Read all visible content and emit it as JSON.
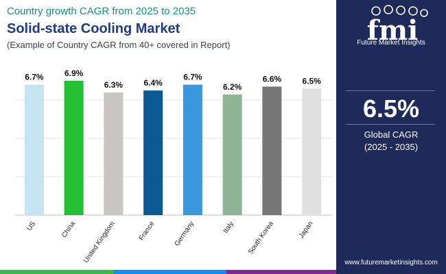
{
  "header": {
    "supertitle": "Country growth CAGR from 2025 to 2035",
    "title": "Solid-state Cooling Market",
    "subtitle": "(Example of Country CAGR from 40+ covered in Report)"
  },
  "sidebar": {
    "logo_text": "fmi",
    "brand": "Future Market Insights",
    "global_value": "6.5%",
    "global_label": "Global CAGR",
    "global_range": "(2025 - 2035)",
    "website": "www.futuremarketinsights.com"
  },
  "colors": {
    "sidebar_bg": "#1e2a5a",
    "title": "#1e3a8a",
    "supertitle": "#0d9488",
    "footer": [
      "#4caf50",
      "#1e88e5",
      "#7b2d8e"
    ]
  },
  "chart_data": {
    "type": "bar",
    "title": "Solid-state Cooling Market",
    "categories": [
      "US",
      "China",
      "United Kingdom",
      "France",
      "Germany",
      "Italy",
      "South Korea",
      "Japan"
    ],
    "values": [
      6.7,
      6.9,
      6.3,
      6.4,
      6.7,
      6.2,
      6.6,
      6.5
    ],
    "value_labels": [
      "6.7%",
      "6.9%",
      "6.3%",
      "6.4%",
      "6.7%",
      "6.2%",
      "6.6%",
      "6.5%"
    ],
    "colors": [
      "#c5e3f3",
      "#22c032",
      "#c8c5c2",
      "#0b5a93",
      "#3b97dc",
      "#8fb597",
      "#767676",
      "#e0e0e0"
    ],
    "ylim": [
      0,
      7.6
    ],
    "grid": true,
    "legend": "none",
    "xlabel": "",
    "ylabel": ""
  }
}
